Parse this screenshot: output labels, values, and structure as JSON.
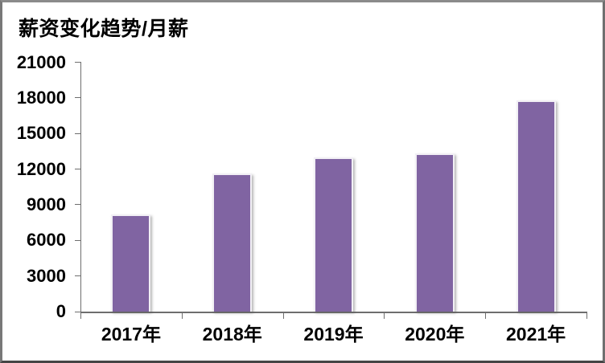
{
  "chart_data": {
    "type": "bar",
    "title": "薪资变化趋势/月薪",
    "categories": [
      "2017年",
      "2018年",
      "2019年",
      "2020年",
      "2021年"
    ],
    "values": [
      8200,
      11600,
      13000,
      13300,
      17800
    ],
    "xlabel": "",
    "ylabel": "",
    "ylim": [
      0,
      21000
    ],
    "ytick_interval": 3000,
    "yticks": [
      0,
      3000,
      6000,
      9000,
      12000,
      15000,
      18000,
      21000
    ],
    "legend": "none",
    "grid": false,
    "bar_color": "#8064A2"
  },
  "colors": {
    "bar": "#8064A2",
    "axis": "#6e6e6e",
    "text": "#000000",
    "frame": "#8b8b8b",
    "background": "#ffffff"
  }
}
